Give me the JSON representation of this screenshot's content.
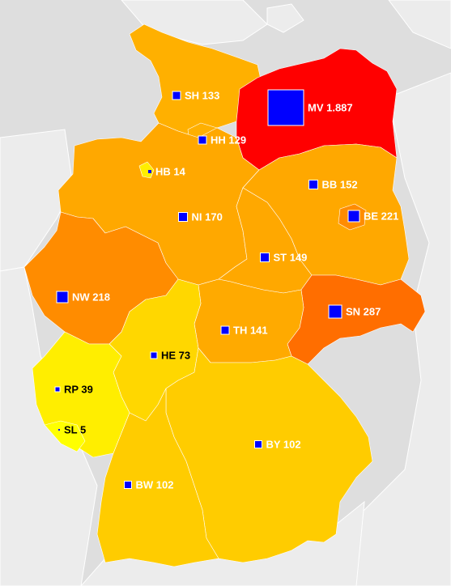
{
  "map": {
    "colors": {
      "background": "#dedede",
      "neighbor_land": "#ececec",
      "marker": "#0000ff",
      "label_light": "#ffffff",
      "label_dark": "#000000"
    },
    "states": [
      {
        "code": "SH",
        "value": "133",
        "label": "SH 133",
        "color": "#ffb000"
      },
      {
        "code": "HH",
        "value": "129",
        "label": "HH 129",
        "color": "#ffb000"
      },
      {
        "code": "MV",
        "value": "1.887",
        "label": "MV 1.887",
        "color": "#ff0000"
      },
      {
        "code": "HB",
        "value": "14",
        "label": "HB 14",
        "color": "#ffee00"
      },
      {
        "code": "BB",
        "value": "152",
        "label": "BB 152",
        "color": "#ffa800"
      },
      {
        "code": "NI",
        "value": "170",
        "label": "NI 170",
        "color": "#ffa800"
      },
      {
        "code": "BE",
        "value": "221",
        "label": "BE 221",
        "color": "#ff8c00"
      },
      {
        "code": "ST",
        "value": "149",
        "label": "ST 149",
        "color": "#ffa800"
      },
      {
        "code": "NW",
        "value": "218",
        "label": "NW 218",
        "color": "#ff8c00"
      },
      {
        "code": "SN",
        "value": "287",
        "label": "SN 287",
        "color": "#ff6e00"
      },
      {
        "code": "TH",
        "value": "141",
        "label": "TH 141",
        "color": "#ffaa00"
      },
      {
        "code": "HE",
        "value": "73",
        "label": "HE 73",
        "color": "#ffd700"
      },
      {
        "code": "RP",
        "value": "39",
        "label": "RP 39",
        "color": "#ffee00"
      },
      {
        "code": "SL",
        "value": "5",
        "label": "SL 5",
        "color": "#ffff00"
      },
      {
        "code": "BY",
        "value": "102",
        "label": "BY 102",
        "color": "#ffcc00"
      },
      {
        "code": "BW",
        "value": "102",
        "label": "BW 102",
        "color": "#ffcc00"
      }
    ]
  }
}
